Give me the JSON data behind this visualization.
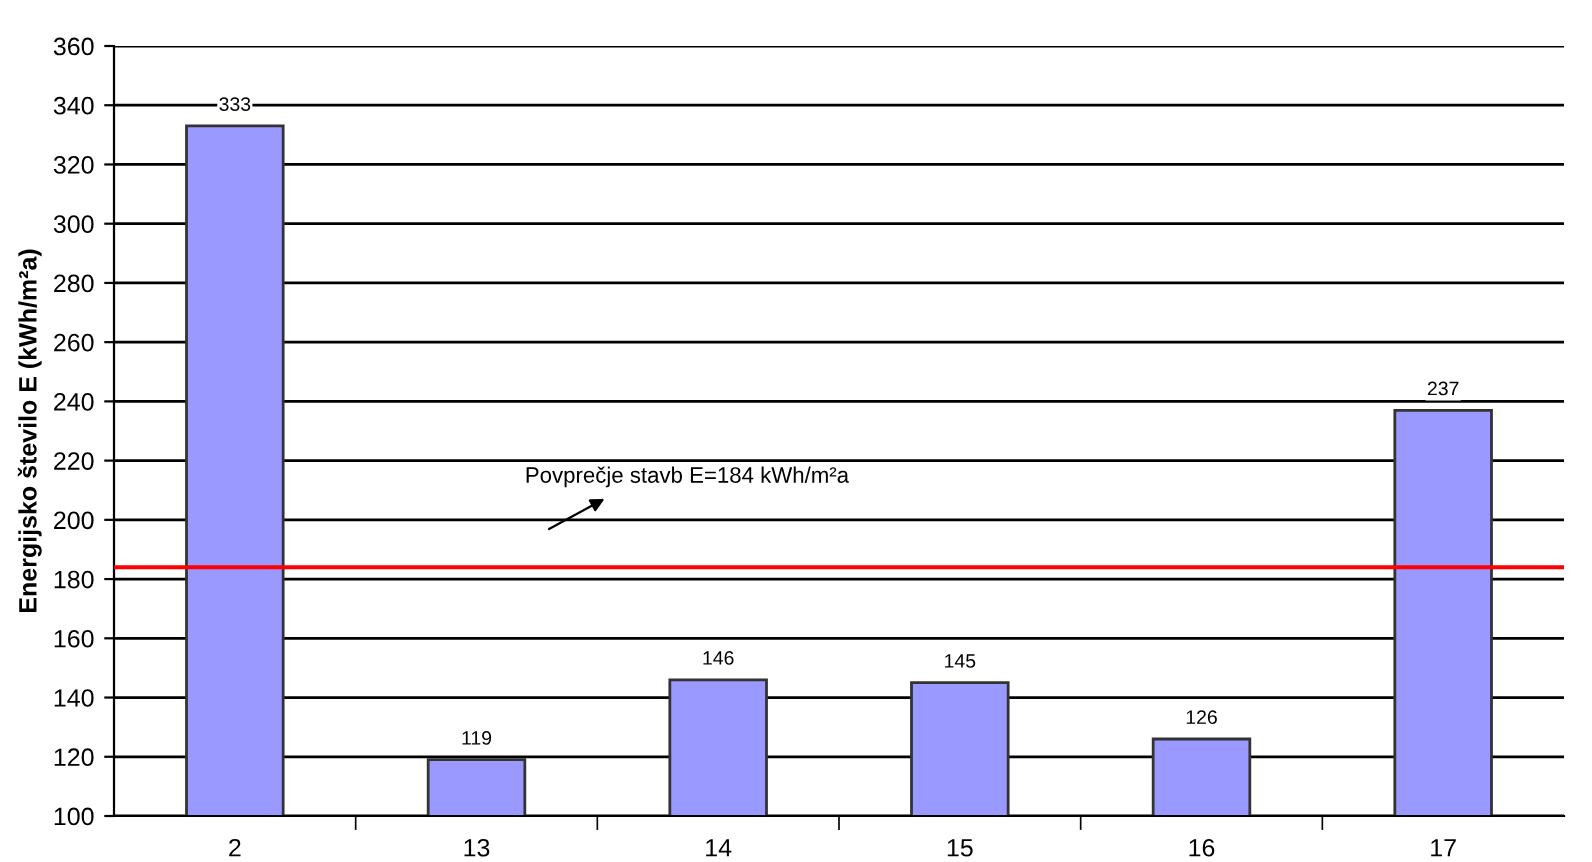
{
  "chart_data": {
    "type": "bar",
    "ylabel": "Energijsko število E (kWh/m²a)",
    "categories": [
      "2",
      "13",
      "14",
      "15",
      "16",
      "17"
    ],
    "series": [
      {
        "color": "#9999ff",
        "values": [
          333,
          119,
          146,
          145,
          126,
          237
        ]
      }
    ],
    "ylim": [
      100,
      360
    ],
    "yticks": [
      100,
      120,
      140,
      160,
      180,
      200,
      220,
      240,
      260,
      280,
      300,
      320,
      340,
      360
    ],
    "grid": "y",
    "data_labels": true,
    "ref_lines": [
      {
        "axis": "y",
        "value": 184,
        "color": "#ff0000"
      }
    ],
    "annotations": [
      "Povprečje stavb E=184 kWh/m²a"
    ]
  }
}
